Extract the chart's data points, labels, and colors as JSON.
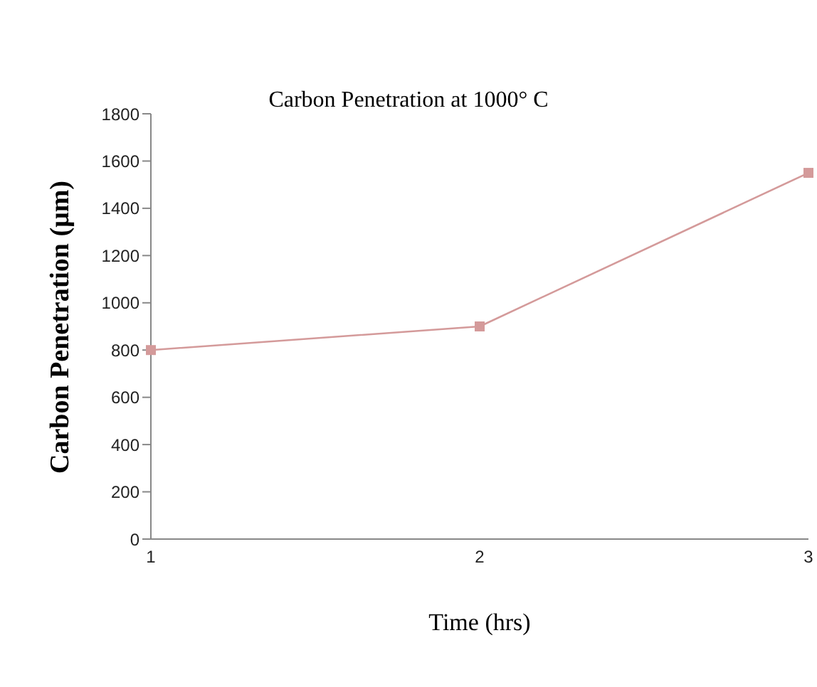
{
  "chart_data": {
    "type": "line",
    "title": "Carbon Penetration at 1000° C",
    "xlabel": "Time (hrs)",
    "ylabel": "Carbon Penetration (μm)",
    "categories": [
      "1",
      "2",
      "3"
    ],
    "series": [
      {
        "color": "#d49a9a",
        "values": [
          800,
          900,
          1550
        ]
      }
    ],
    "ylim": [
      0,
      1800
    ],
    "yticks": [
      0,
      200,
      400,
      600,
      800,
      1000,
      1200,
      1400,
      1600,
      1800
    ],
    "marker": "square",
    "line_style": "solid"
  }
}
